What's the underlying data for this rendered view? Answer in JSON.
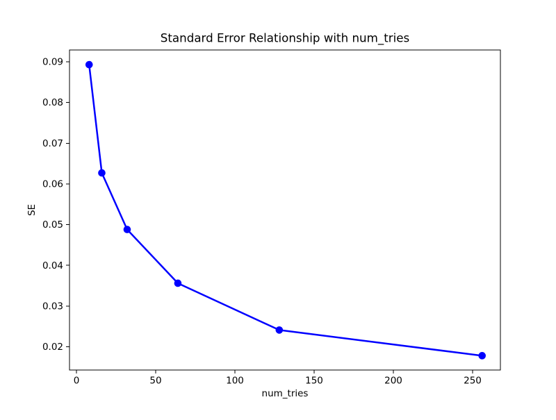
{
  "figure": {
    "background_color": "#ffffff"
  },
  "chart_data": {
    "type": "line",
    "title": "Standard Error Relationship with num_tries",
    "xlabel": "num_tries",
    "ylabel": "SE",
    "x": [
      8,
      16,
      32,
      64,
      128,
      256
    ],
    "y": [
      0.0893,
      0.0627,
      0.0488,
      0.0356,
      0.0241,
      0.0178
    ],
    "line_color": "#0000ff",
    "marker": "o",
    "marker_color": "#0000ff",
    "xlim": [
      -4.39,
      267.54
    ],
    "ylim": [
      0.01428,
      0.0929
    ],
    "xticks": [
      0,
      50,
      100,
      150,
      200,
      250
    ],
    "yticks": [
      0.02,
      0.03,
      0.04,
      0.05,
      0.06,
      0.07,
      0.08,
      0.09
    ],
    "ytick_decimals": 2,
    "grid": false,
    "legend": null
  }
}
